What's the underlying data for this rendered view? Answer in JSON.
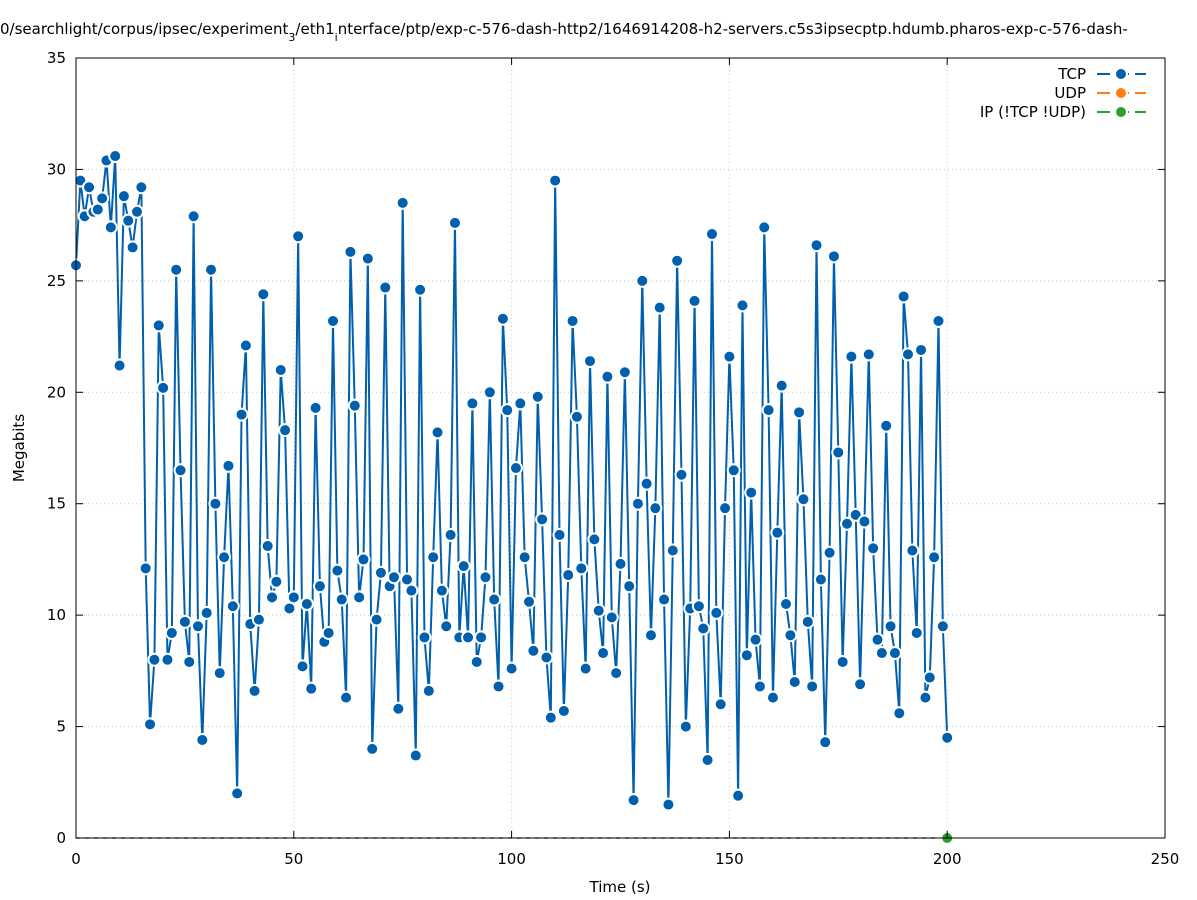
{
  "chart_data": {
    "type": "line",
    "title": "0/searchlight/corpus/ipsec/experiment_3/eth1_interface/ptp/exp-c-576-dash-http2/1646914208-h2-servers.c5s3ipsecptp.hdumb.pharos-exp-c-576-dash-",
    "title_parts": {
      "a": "0/searchlight/corpus/ipsec/experiment",
      "sub1": "3",
      "b": "/eth1",
      "sub2": "i",
      "c": "nterface/ptp/exp-c-576-dash-http2/1646914208-h2-servers.c5s3ipsecptp.hdumb.pharos-exp-c-576-dash-"
    },
    "xlabel": "Time (s)",
    "ylabel": "Megabits",
    "xlim": [
      0,
      250
    ],
    "ylim": [
      0,
      35
    ],
    "x_ticks": [
      "0",
      "50",
      "100",
      "150",
      "200",
      "250"
    ],
    "y_ticks": [
      "0",
      "5",
      "10",
      "15",
      "20",
      "25",
      "30",
      "35"
    ],
    "grid": true,
    "legend_position": "top-right",
    "series": [
      {
        "name": "TCP",
        "color": "#0060ad",
        "points": [
          [
            0,
            25.7
          ],
          [
            1,
            29.5
          ],
          [
            2,
            27.9
          ],
          [
            3,
            29.2
          ],
          [
            4,
            28.1
          ],
          [
            5,
            28.2
          ],
          [
            6,
            28.7
          ],
          [
            7,
            30.4
          ],
          [
            8,
            27.4
          ],
          [
            9,
            30.6
          ],
          [
            10,
            21.2
          ],
          [
            11,
            28.8
          ],
          [
            12,
            27.7
          ],
          [
            13,
            26.5
          ],
          [
            14,
            28.1
          ],
          [
            15,
            29.2
          ],
          [
            16,
            12.1
          ],
          [
            17,
            5.1
          ],
          [
            18,
            8.0
          ],
          [
            19,
            23.0
          ],
          [
            20,
            20.2
          ],
          [
            21,
            8.0
          ],
          [
            22,
            9.2
          ],
          [
            23,
            25.5
          ],
          [
            24,
            16.5
          ],
          [
            25,
            9.7
          ],
          [
            26,
            7.9
          ],
          [
            27,
            27.9
          ],
          [
            28,
            9.5
          ],
          [
            29,
            4.4
          ],
          [
            30,
            10.1
          ],
          [
            31,
            25.5
          ],
          [
            32,
            15.0
          ],
          [
            33,
            7.4
          ],
          [
            34,
            12.6
          ],
          [
            35,
            16.7
          ],
          [
            36,
            10.4
          ],
          [
            37,
            2.0
          ],
          [
            38,
            19.0
          ],
          [
            39,
            22.1
          ],
          [
            40,
            9.6
          ],
          [
            41,
            6.6
          ],
          [
            42,
            9.8
          ],
          [
            43,
            24.4
          ],
          [
            44,
            13.1
          ],
          [
            45,
            10.8
          ],
          [
            46,
            11.5
          ],
          [
            47,
            21.0
          ],
          [
            48,
            18.3
          ],
          [
            49,
            10.3
          ],
          [
            50,
            10.8
          ],
          [
            51,
            27.0
          ],
          [
            52,
            7.7
          ],
          [
            53,
            10.5
          ],
          [
            54,
            6.7
          ],
          [
            55,
            19.3
          ],
          [
            56,
            11.3
          ],
          [
            57,
            8.8
          ],
          [
            58,
            9.2
          ],
          [
            59,
            23.2
          ],
          [
            60,
            12.0
          ],
          [
            61,
            10.7
          ],
          [
            62,
            6.3
          ],
          [
            63,
            26.3
          ],
          [
            64,
            19.4
          ],
          [
            65,
            10.8
          ],
          [
            66,
            12.5
          ],
          [
            67,
            26.0
          ],
          [
            68,
            4.0
          ],
          [
            69,
            9.8
          ],
          [
            70,
            11.9
          ],
          [
            71,
            24.7
          ],
          [
            72,
            11.3
          ],
          [
            73,
            11.7
          ],
          [
            74,
            5.8
          ],
          [
            75,
            28.5
          ],
          [
            76,
            11.6
          ],
          [
            77,
            11.1
          ],
          [
            78,
            3.7
          ],
          [
            79,
            24.6
          ],
          [
            80,
            9.0
          ],
          [
            81,
            6.6
          ],
          [
            82,
            12.6
          ],
          [
            83,
            18.2
          ],
          [
            84,
            11.1
          ],
          [
            85,
            9.5
          ],
          [
            86,
            13.6
          ],
          [
            87,
            27.6
          ],
          [
            88,
            9.0
          ],
          [
            89,
            12.2
          ],
          [
            90,
            9.0
          ],
          [
            91,
            19.5
          ],
          [
            92,
            7.9
          ],
          [
            93,
            9.0
          ],
          [
            94,
            11.7
          ],
          [
            95,
            20.0
          ],
          [
            96,
            10.7
          ],
          [
            97,
            6.8
          ],
          [
            98,
            23.3
          ],
          [
            99,
            19.2
          ],
          [
            100,
            7.6
          ],
          [
            101,
            16.6
          ],
          [
            102,
            19.5
          ],
          [
            103,
            12.6
          ],
          [
            104,
            10.6
          ],
          [
            105,
            8.4
          ],
          [
            106,
            19.8
          ],
          [
            107,
            14.3
          ],
          [
            108,
            8.1
          ],
          [
            109,
            5.4
          ],
          [
            110,
            29.5
          ],
          [
            111,
            13.6
          ],
          [
            112,
            5.7
          ],
          [
            113,
            11.8
          ],
          [
            114,
            23.2
          ],
          [
            115,
            18.9
          ],
          [
            116,
            12.1
          ],
          [
            117,
            7.6
          ],
          [
            118,
            21.4
          ],
          [
            119,
            13.4
          ],
          [
            120,
            10.2
          ],
          [
            121,
            8.3
          ],
          [
            122,
            20.7
          ],
          [
            123,
            9.9
          ],
          [
            124,
            7.4
          ],
          [
            125,
            12.3
          ],
          [
            126,
            20.9
          ],
          [
            127,
            11.3
          ],
          [
            128,
            1.7
          ],
          [
            129,
            15.0
          ],
          [
            130,
            25.0
          ],
          [
            131,
            15.9
          ],
          [
            132,
            9.1
          ],
          [
            133,
            14.8
          ],
          [
            134,
            23.8
          ],
          [
            135,
            10.7
          ],
          [
            136,
            1.5
          ],
          [
            137,
            12.9
          ],
          [
            138,
            25.9
          ],
          [
            139,
            16.3
          ],
          [
            140,
            5.0
          ],
          [
            141,
            10.3
          ],
          [
            142,
            24.1
          ],
          [
            143,
            10.4
          ],
          [
            144,
            9.4
          ],
          [
            145,
            3.5
          ],
          [
            146,
            27.1
          ],
          [
            147,
            10.1
          ],
          [
            148,
            6.0
          ],
          [
            149,
            14.8
          ],
          [
            150,
            21.6
          ],
          [
            151,
            16.5
          ],
          [
            152,
            1.9
          ],
          [
            153,
            23.9
          ],
          [
            154,
            8.2
          ],
          [
            155,
            15.5
          ],
          [
            156,
            8.9
          ],
          [
            157,
            6.8
          ],
          [
            158,
            27.4
          ],
          [
            159,
            19.2
          ],
          [
            160,
            6.3
          ],
          [
            161,
            13.7
          ],
          [
            162,
            20.3
          ],
          [
            163,
            10.5
          ],
          [
            164,
            9.1
          ],
          [
            165,
            7.0
          ],
          [
            166,
            19.1
          ],
          [
            167,
            15.2
          ],
          [
            168,
            9.7
          ],
          [
            169,
            6.8
          ],
          [
            170,
            26.6
          ],
          [
            171,
            11.6
          ],
          [
            172,
            4.3
          ],
          [
            173,
            12.8
          ],
          [
            174,
            26.1
          ],
          [
            175,
            17.3
          ],
          [
            176,
            7.9
          ],
          [
            177,
            14.1
          ],
          [
            178,
            21.6
          ],
          [
            179,
            14.5
          ],
          [
            180,
            6.9
          ],
          [
            181,
            14.2
          ],
          [
            182,
            21.7
          ],
          [
            183,
            13.0
          ],
          [
            184,
            8.9
          ],
          [
            185,
            8.3
          ],
          [
            186,
            18.5
          ],
          [
            187,
            9.5
          ],
          [
            188,
            8.3
          ],
          [
            189,
            5.6
          ],
          [
            190,
            24.3
          ],
          [
            191,
            21.7
          ],
          [
            192,
            12.9
          ],
          [
            193,
            9.2
          ],
          [
            194,
            21.9
          ],
          [
            195,
            6.3
          ],
          [
            196,
            7.2
          ],
          [
            197,
            12.6
          ],
          [
            198,
            23.2
          ],
          [
            199,
            9.5
          ],
          [
            200,
            4.5
          ]
        ]
      },
      {
        "name": "UDP",
        "color": "#ff7f0e",
        "points": []
      },
      {
        "name": "IP (!TCP  !UDP)",
        "color": "#2ca02c",
        "baseline_from": 0,
        "baseline_to": 200,
        "points": [
          [
            200,
            0
          ]
        ]
      }
    ]
  }
}
